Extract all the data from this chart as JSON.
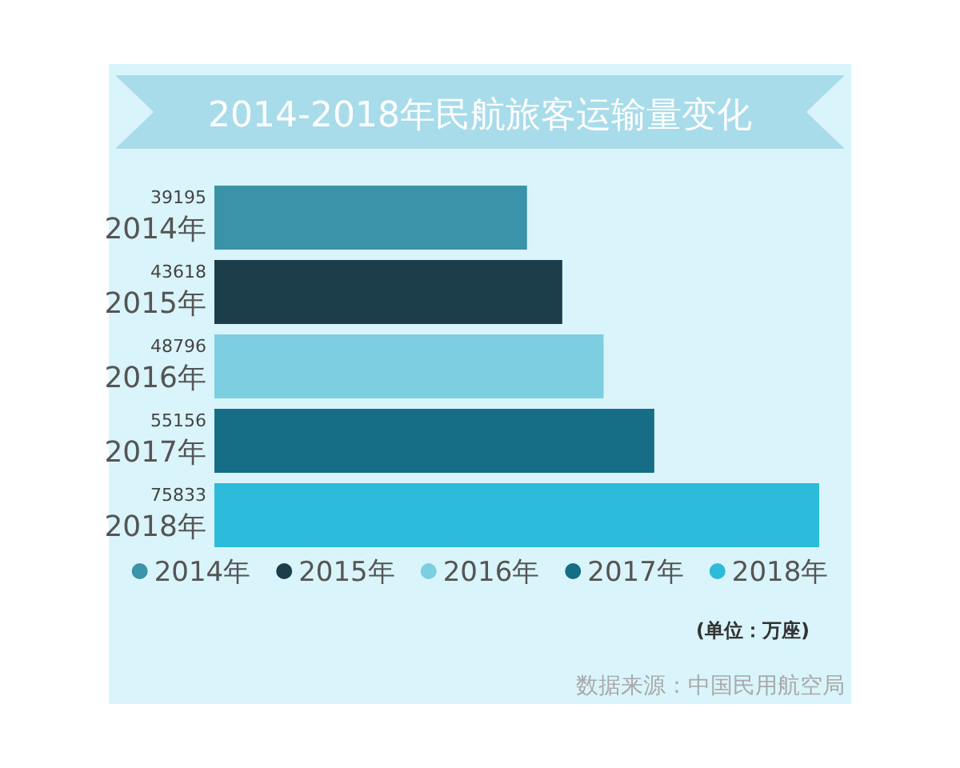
{
  "chart_data": {
    "type": "bar",
    "orientation": "horizontal",
    "stacked": true,
    "title": "2014-2018年民航旅客运输量变化",
    "categories": [
      "2014年",
      "2015年",
      "2016年",
      "2017年",
      "2018年"
    ],
    "series": [
      {
        "name": "2014年",
        "color": "#3a93a8",
        "values": [
          39195,
          null,
          null,
          null,
          null
        ]
      },
      {
        "name": "2015年",
        "color": "#1c3e4b",
        "values": [
          null,
          43618,
          null,
          null,
          null
        ]
      },
      {
        "name": "2016年",
        "color": "#7ccee0",
        "values": [
          null,
          null,
          48796,
          null,
          null
        ]
      },
      {
        "name": "2017年",
        "color": "#166e86",
        "values": [
          null,
          null,
          null,
          55156,
          null
        ]
      },
      {
        "name": "2018年",
        "color": "#2cbbdb",
        "values": [
          null,
          null,
          null,
          null,
          75833
        ]
      }
    ],
    "data_labels": true,
    "legend": "bottom",
    "annotations": [
      "(单位：万座)",
      "数据来源：中国民用航空局"
    ]
  }
}
